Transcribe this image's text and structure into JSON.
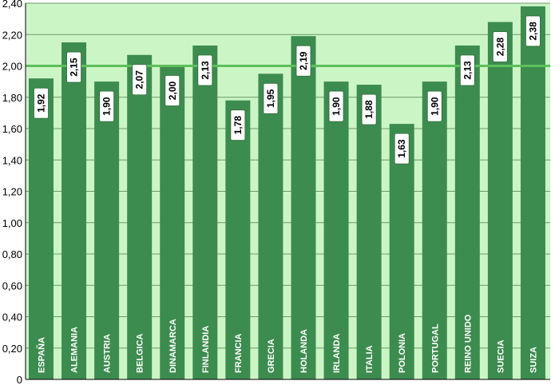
{
  "chart_data": {
    "type": "bar",
    "categories": [
      "ESPAÑA",
      "ALEMANIA",
      "AUSTRIA",
      "BELGICA",
      "DINAMARCA",
      "FINLANDIA",
      "FRANCIA",
      "GRECIA",
      "HOLANDA",
      "IRLANDA",
      "ITALIA",
      "POLONIA",
      "PORTUGAL",
      "REINO UNIDO",
      "SUECIA",
      "SUIZA"
    ],
    "values": [
      1.92,
      2.15,
      1.9,
      2.07,
      2.0,
      2.13,
      1.78,
      1.95,
      2.19,
      1.9,
      1.88,
      1.63,
      1.9,
      2.13,
      2.28,
      2.38
    ],
    "value_labels": [
      "1,92",
      "2,15",
      "1,90",
      "2,07",
      "2,00",
      "2,13",
      "1,78",
      "1,95",
      "2,19",
      "1,90",
      "1,88",
      "1,63",
      "1,90",
      "2,13",
      "2,28",
      "2,38"
    ],
    "ylim": [
      0,
      2.4
    ],
    "y_ticks": [
      0,
      0.2,
      0.4,
      0.6,
      0.8,
      1.0,
      1.2,
      1.4,
      1.6,
      1.8,
      2.0,
      2.2,
      2.4
    ],
    "y_tick_labels": [
      "0",
      "0,20",
      "0,40",
      "0,60",
      "0,80",
      "1,00",
      "1,20",
      "1,40",
      "1,60",
      "1,80",
      "2,00",
      "2,20",
      "2,40"
    ],
    "reference_line": 2.0,
    "grid": true,
    "colors": {
      "bar": "#3d8c4f",
      "plot_background": "#ccf5c6",
      "gridline": "#6c9a6c",
      "reference_line": "#5cbf5c",
      "label_box": "#ffffff"
    }
  }
}
